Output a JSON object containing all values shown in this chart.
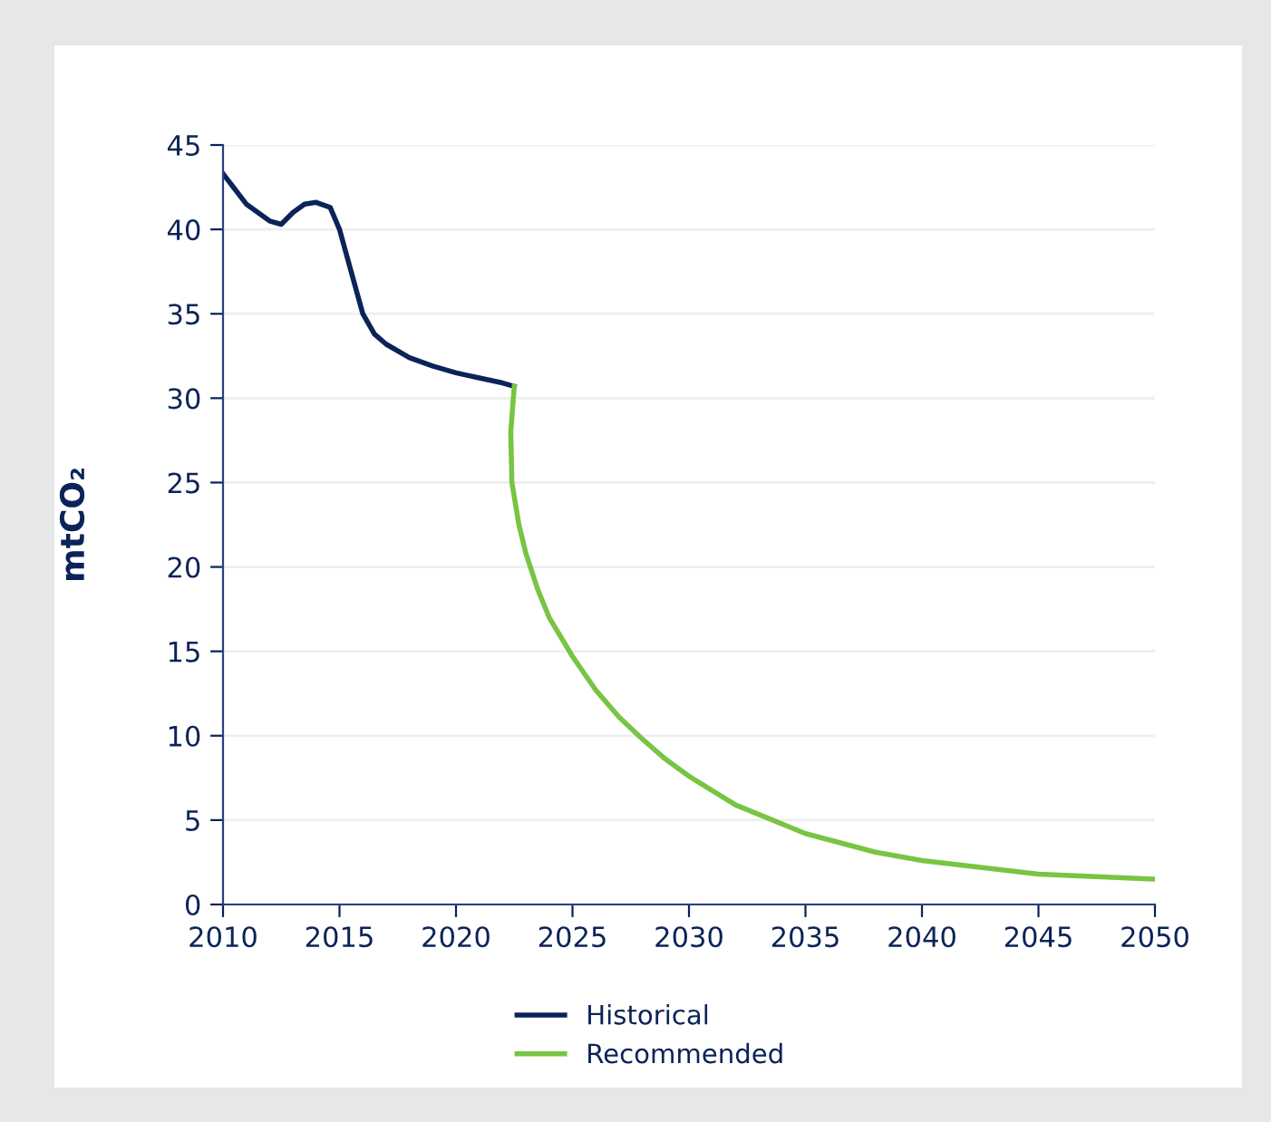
{
  "chart_data": {
    "type": "line",
    "ylabel": "mtCO₂",
    "xlim": [
      2010,
      2050
    ],
    "xticks": [
      2010,
      2015,
      2020,
      2025,
      2030,
      2035,
      2040,
      2045,
      2050
    ],
    "ylim": [
      0,
      45
    ],
    "yticks": [
      0,
      5,
      10,
      15,
      20,
      25,
      30,
      35,
      40,
      45
    ],
    "grid": "y",
    "legend": "bottom",
    "marker": "none",
    "line_style": "solid",
    "series": [
      {
        "name": "Historical",
        "color": "#0b2358",
        "x": [
          2010,
          2011,
          2012,
          2012.5,
          2013,
          2013.5,
          2014,
          2014.6,
          2015,
          2015.5,
          2016,
          2016.5,
          2017,
          2018,
          2019,
          2020,
          2021,
          2022,
          2022.5
        ],
        "values": [
          43.3,
          41.5,
          40.5,
          40.3,
          41,
          41.5,
          41.6,
          41.3,
          40,
          37.5,
          35,
          33.8,
          33.2,
          32.4,
          31.9,
          31.5,
          31.2,
          30.9,
          30.7
        ]
      },
      {
        "name": "Recommended",
        "color": "#78c443",
        "x": [
          2022.5,
          2022.35,
          2022.4,
          2022.7,
          2023,
          2023.5,
          2024,
          2025,
          2026,
          2027,
          2028,
          2029,
          2030,
          2032,
          2035,
          2038,
          2040,
          2045,
          2050
        ],
        "values": [
          30.7,
          28,
          25,
          22.5,
          20.8,
          18.7,
          17,
          14.7,
          12.7,
          11.1,
          9.8,
          8.6,
          7.6,
          5.9,
          4.2,
          3.1,
          2.6,
          1.8,
          1.5
        ]
      }
    ]
  }
}
